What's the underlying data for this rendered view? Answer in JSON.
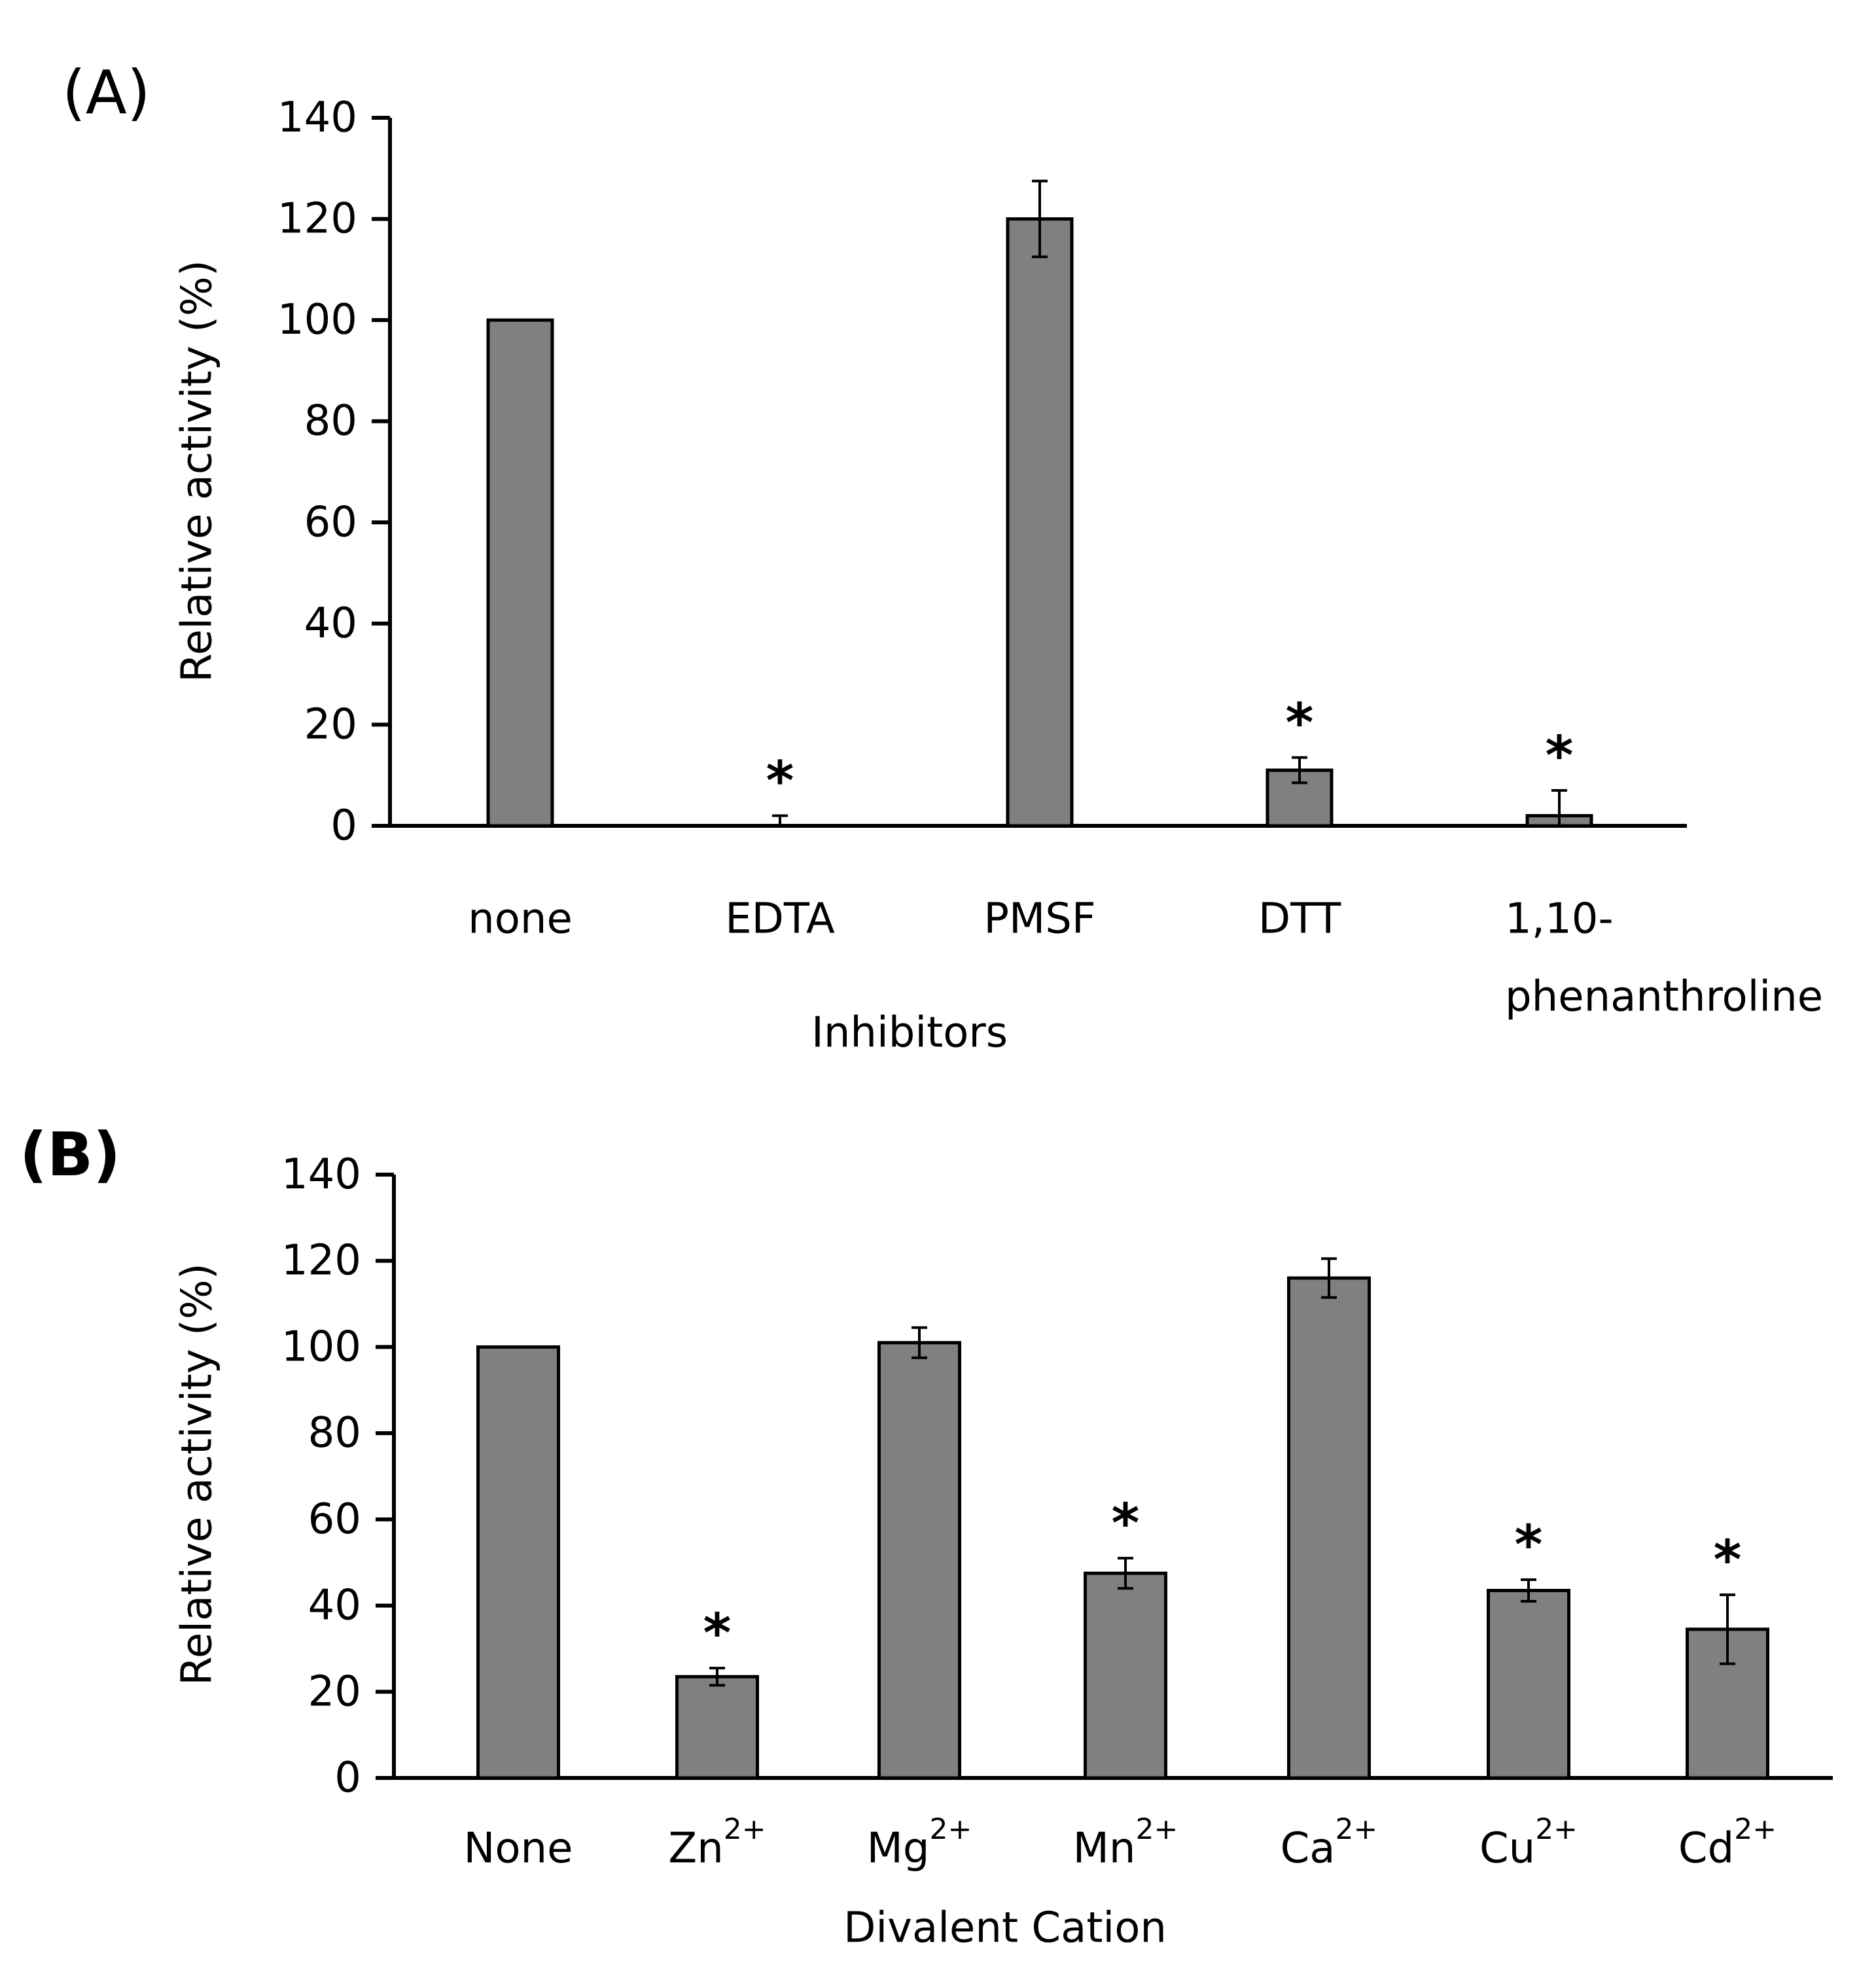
{
  "chart_data": [
    {
      "panel_label": "(A)",
      "type": "bar",
      "xlabel": "Inhibitors",
      "ylabel": "Relative activity (%)",
      "ylim": [
        0,
        140
      ],
      "yticks": [
        0,
        20,
        40,
        60,
        80,
        100,
        120,
        140
      ],
      "categories": [
        [
          "none"
        ],
        [
          "EDTA"
        ],
        [
          "PMSF"
        ],
        [
          "DTT"
        ],
        [
          "1,10-",
          "phenanthroline"
        ]
      ],
      "values": [
        100,
        0,
        120,
        11,
        2
      ],
      "errors": [
        null,
        2,
        7.5,
        2.5,
        5
      ],
      "significant": [
        false,
        true,
        false,
        true,
        true
      ],
      "significance_marker": "*",
      "grid": false
    },
    {
      "panel_label": "(B)",
      "type": "bar",
      "xlabel": "Divalent Cation",
      "ylabel": "Relative activity (%)",
      "ylim": [
        0,
        140
      ],
      "yticks": [
        0,
        20,
        40,
        60,
        80,
        100,
        120,
        140
      ],
      "categories": [
        {
          "base": "None",
          "sup": ""
        },
        {
          "base": "Zn",
          "sup": "2+"
        },
        {
          "base": "Mg",
          "sup": "2+"
        },
        {
          "base": "Mn",
          "sup": "2+"
        },
        {
          "base": "Ca",
          "sup": "2+"
        },
        {
          "base": "Cu",
          "sup": "2+"
        },
        {
          "base": "Cd",
          "sup": "2+"
        }
      ],
      "values": [
        100,
        23.5,
        101,
        47.5,
        116,
        43.5,
        34.5
      ],
      "errors": [
        null,
        2,
        3.5,
        3.5,
        4.5,
        2.5,
        8
      ],
      "significant": [
        false,
        true,
        false,
        true,
        false,
        true,
        true
      ],
      "significance_marker": "*",
      "grid": false
    }
  ]
}
